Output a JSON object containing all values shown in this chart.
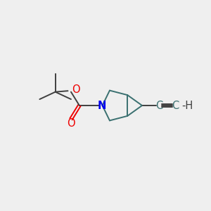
{
  "bg_color": "#efefef",
  "bond_color": "#3a7070",
  "bond_color_dark": "#404040",
  "N_color": "#0000ee",
  "O_color": "#ee0000",
  "C_teal_color": "#3a7070",
  "line_width": 1.4,
  "font_size": 10.5,
  "fig_w": 3.0,
  "fig_h": 3.0,
  "dpi": 100,
  "xlim": [
    0,
    10
  ],
  "ylim": [
    0,
    10
  ]
}
